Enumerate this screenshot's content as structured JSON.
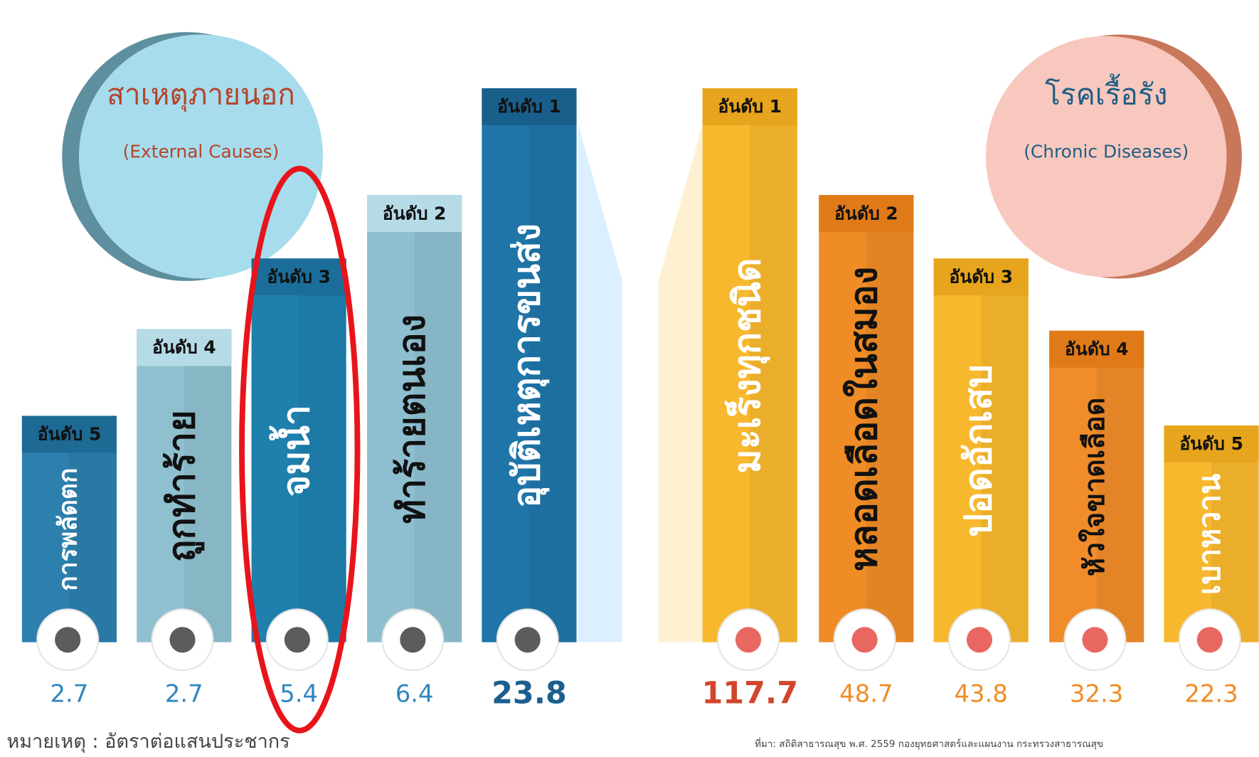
{
  "groups": [
    {
      "title": "สาเหตุภายนอก",
      "subtitle": "(External Causes)",
      "items": [
        {
          "rank": "อันดับ 5",
          "label": "การพลัดตก",
          "value": 2.7
        },
        {
          "rank": "อันดับ 4",
          "label": "ถูกทำร้าย",
          "value": 2.7
        },
        {
          "rank": "อันดับ 3",
          "label": "จมน้ำ",
          "value": 5.4
        },
        {
          "rank": "อันดับ 2",
          "label": "ทำร้ายตนเอง",
          "value": 6.4
        },
        {
          "rank": "อันดับ 1",
          "label": "อุบัติเหตุการขนส่ง",
          "value": 23.8
        }
      ]
    },
    {
      "title": "โรคเรื้อรัง",
      "subtitle": "(Chronic Diseases)",
      "items": [
        {
          "rank": "อันดับ 1",
          "label": "มะเร็งทุกชนิด",
          "value": 117.7
        },
        {
          "rank": "อันดับ 2",
          "label": "หลอดเลือดในสมอง",
          "value": 48.7
        },
        {
          "rank": "อันดับ 3",
          "label": "ปอดอักเสบ",
          "value": 43.8
        },
        {
          "rank": "อันดับ 4",
          "label": "หัวใจขาดเลือด",
          "value": 32.3
        },
        {
          "rank": "อันดับ 5",
          "label": "เบาหวาน",
          "value": 22.3
        }
      ]
    }
  ],
  "footer": {
    "note": "หมายเหตุ : อัตราต่อแสนประชากร",
    "source": "ที่มา: สถิติสาธารณสุข พ.ศ. 2559 กองยุทธศาสตร์และแผนงาน กระทรวงสาธารณสุข"
  }
}
